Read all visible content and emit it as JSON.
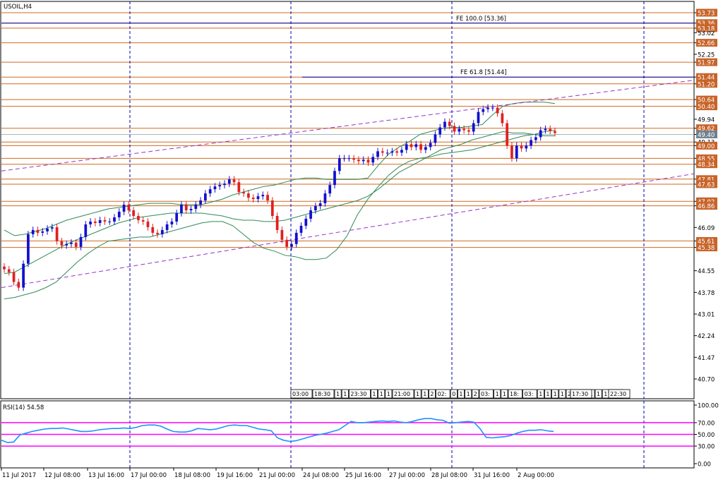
{
  "symbol_label": "USOIL,H4",
  "fib_labels": {
    "fe100": "FE 100.0 [53.36]",
    "fe618": "FE 61.8 [51.44]"
  },
  "fib_levels": {
    "fe100": 53.36,
    "fe618": 51.44
  },
  "colors": {
    "bull_candle": "#1010d0",
    "bear_candle": "#e02020",
    "level_line": "#d2691e",
    "level_tag": "#c8642a",
    "price_tag": "#708090",
    "bollinger": "#2e8b57",
    "channel": "#9932cc",
    "grid_vertical": "#0000aa",
    "rsi_line": "#1e90ff",
    "rsi_levels": "#ff00ff",
    "fib_line": "#0000aa"
  },
  "chart_data": [
    {
      "type": "candlestick",
      "title": "USOIL,H4",
      "price_scale_labels": [
        "53.73",
        "53.36",
        "53.18",
        "53.02",
        "52.66",
        "52.25",
        "51.97",
        "51.44",
        "51.20",
        "50.64",
        "50.40",
        "49.94",
        "49.62",
        "49.40",
        "49.13",
        "49.00",
        "48.55",
        "48.34",
        "47.81",
        "47.63",
        "47.02",
        "46.86",
        "46.09",
        "45.61",
        "45.38",
        "44.55",
        "43.78",
        "43.01",
        "42.24",
        "41.47",
        "40.70"
      ],
      "y_range": [
        40.2,
        54.05
      ],
      "horizontal_levels": [
        53.73,
        53.36,
        53.18,
        52.66,
        51.97,
        51.44,
        51.2,
        50.64,
        50.4,
        49.62,
        49.13,
        49.0,
        48.55,
        48.34,
        47.81,
        47.63,
        47.02,
        46.86,
        45.61,
        45.38
      ],
      "highlighted_labels": [
        "53.73",
        "53.36",
        "53.18",
        "52.66",
        "51.97",
        "51.44",
        "51.20",
        "50.64",
        "50.40",
        "49.62",
        "49.00",
        "48.55",
        "48.34",
        "47.81",
        "47.63",
        "47.02",
        "46.86",
        "45.61",
        "45.38"
      ],
      "current_price_label": "49.40",
      "current_price": 49.4,
      "x_labels": [
        "11 Jul 2017",
        "12 Jul 08:00",
        "13 Jul 16:00",
        "17 Jul 00:00",
        "18 Jul 08:00",
        "19 Jul 16:00",
        "21 Jul 00:00",
        "24 Jul 08:00",
        "25 Jul 16:00",
        "27 Jul 00:00",
        "28 Jul 08:00",
        "31 Jul 16:00",
        "2 Aug 00:00"
      ],
      "time_tags": [
        "03:00",
        "18:30",
        "1",
        "1",
        "23:30",
        "1",
        "1",
        "1",
        "21:00",
        "1",
        "1",
        "2",
        "02:",
        "0",
        "1",
        "1",
        "2",
        "03:",
        "1",
        "1",
        "18:",
        "03:",
        "1",
        "1",
        "1",
        "1",
        "2",
        "02:",
        "1",
        "1",
        "17:30",
        "17:30",
        "22:30"
      ],
      "closes": [
        44.6,
        44.5,
        44.15,
        43.95,
        44.8,
        45.85,
        46.0,
        45.9,
        45.95,
        46.05,
        46.1,
        45.6,
        45.45,
        45.5,
        45.55,
        45.4,
        45.75,
        46.2,
        46.3,
        46.25,
        46.35,
        46.3,
        46.3,
        46.45,
        46.65,
        46.9,
        46.7,
        46.5,
        46.35,
        46.3,
        46.1,
        45.9,
        45.85,
        46.0,
        46.2,
        46.3,
        46.6,
        46.9,
        46.7,
        46.75,
        46.9,
        47.05,
        47.3,
        47.45,
        47.55,
        47.6,
        47.65,
        47.8,
        47.7,
        47.35,
        47.3,
        47.15,
        47.1,
        47.2,
        47.25,
        47.05,
        46.5,
        46.0,
        45.65,
        45.4,
        45.5,
        45.9,
        46.15,
        46.4,
        46.7,
        46.85,
        46.95,
        47.3,
        47.6,
        48.1,
        48.55,
        48.55,
        48.55,
        48.5,
        48.45,
        48.5,
        48.4,
        48.6,
        48.8,
        48.75,
        48.75,
        48.8,
        48.75,
        48.85,
        49.05,
        48.95,
        49.05,
        48.85,
        48.95,
        49.1,
        49.4,
        49.65,
        49.85,
        49.7,
        49.5,
        49.6,
        49.55,
        49.5,
        49.8,
        50.2,
        50.3,
        50.35,
        50.35,
        50.15,
        49.8,
        49.0,
        48.55,
        49.0,
        48.9,
        49.0,
        49.2,
        49.3,
        49.55,
        49.6,
        49.52,
        49.45
      ],
      "bollinger_upper": [
        46.0,
        45.8,
        45.85,
        45.95,
        46.05,
        46.2,
        46.35,
        46.45,
        46.55,
        46.65,
        46.75,
        46.8,
        46.85,
        46.9,
        46.95,
        46.95,
        46.95,
        46.9,
        46.9,
        46.9,
        47.0,
        47.1,
        47.25,
        47.35,
        47.45,
        47.55,
        47.6,
        47.7,
        47.8,
        47.85,
        47.85,
        47.8,
        47.8,
        47.8,
        47.8,
        47.85,
        48.3,
        48.7,
        48.95,
        49.15,
        49.4,
        49.5,
        49.6,
        49.65,
        49.65,
        49.7,
        49.75,
        50.1,
        50.4,
        50.5,
        50.55,
        50.55,
        50.55,
        50.5
      ],
      "bollinger_middle": [
        44.45,
        44.5,
        44.7,
        44.9,
        45.1,
        45.3,
        45.5,
        45.65,
        45.8,
        45.95,
        46.1,
        46.25,
        46.35,
        46.45,
        46.5,
        46.55,
        46.6,
        46.6,
        46.6,
        46.6,
        46.55,
        46.5,
        46.4,
        46.35,
        46.35,
        46.3,
        46.3,
        46.35,
        46.45,
        46.55,
        46.65,
        46.75,
        46.85,
        46.95,
        47.05,
        47.2,
        47.45,
        47.75,
        48.05,
        48.25,
        48.45,
        48.65,
        48.85,
        48.95,
        49.05,
        49.2,
        49.3,
        49.4,
        49.5,
        49.45,
        49.45,
        49.4,
        49.35,
        49.35
      ],
      "bollinger_lower": [
        43.55,
        43.6,
        43.7,
        43.8,
        43.95,
        44.15,
        44.5,
        44.85,
        45.15,
        45.4,
        45.6,
        45.65,
        45.7,
        45.75,
        45.75,
        45.85,
        45.95,
        46.05,
        46.15,
        46.25,
        46.3,
        46.3,
        46.15,
        45.85,
        45.55,
        45.35,
        45.25,
        45.1,
        45.05,
        44.95,
        44.95,
        45.0,
        45.3,
        45.8,
        46.55,
        47.1,
        47.55,
        47.95,
        48.25,
        48.45,
        48.55,
        48.6,
        48.7,
        48.75,
        48.8,
        48.85,
        48.95,
        49.05,
        49.15,
        49.25,
        49.35,
        49.4,
        49.5,
        49.55
      ],
      "channel_lines": [
        {
          "from": [
            0,
            48.1
          ],
          "to": [
            114,
            51.33
          ]
        },
        {
          "from": [
            0,
            43.95
          ],
          "to": [
            114,
            48.0
          ]
        }
      ]
    },
    {
      "type": "line",
      "title": "RSI(14) 54.58",
      "y_scale_labels": [
        "100.00",
        "70.00",
        "50.00",
        "30.00",
        "0.00"
      ],
      "y_range": [
        0,
        100
      ],
      "levels": [
        70,
        50,
        30
      ],
      "values": [
        40,
        36,
        37,
        49,
        52,
        55,
        57,
        59,
        60,
        60,
        61,
        59,
        57,
        55,
        55,
        56,
        58,
        59,
        60,
        60,
        61,
        60,
        62,
        65,
        66,
        66,
        64,
        59,
        55,
        54,
        54,
        56,
        60,
        59,
        58,
        59,
        62,
        65,
        66,
        65,
        65,
        62,
        59,
        58,
        56,
        44,
        40,
        38,
        39,
        42,
        45,
        48,
        50,
        52,
        55,
        58,
        65,
        72,
        70,
        70,
        71,
        72,
        73,
        72,
        73,
        71,
        70,
        72,
        75,
        77,
        77,
        75,
        74,
        69,
        70,
        71,
        72,
        71,
        60,
        45,
        44,
        45,
        46,
        48,
        52,
        55,
        57,
        57,
        58,
        56,
        55
      ]
    }
  ]
}
